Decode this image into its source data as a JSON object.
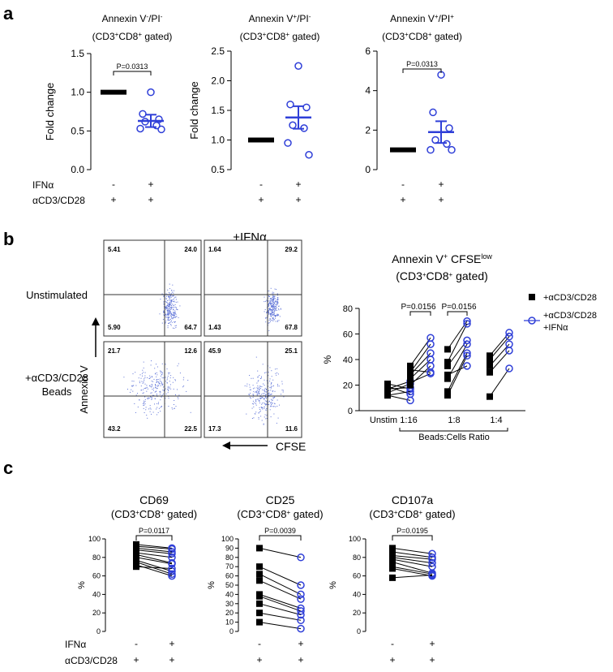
{
  "panel_labels": {
    "a": "a",
    "b": "b",
    "c": "c"
  },
  "colors": {
    "stim_ifn": "#2f3fd8",
    "control": "#000000",
    "dots": "#5f74d8"
  },
  "row_labels_a": {
    "ifn": "IFNα",
    "cd3": "αCD3/CD28"
  },
  "row_labels_c": {
    "ifn": "IFNα",
    "cd3": "αCD3/CD28"
  },
  "flow": {
    "title_ifn": "+IFNα",
    "row1_label": "Unstimulated",
    "row2_label_1": "+αCD3/CD28",
    "row2_label_2": "Beads",
    "y_axis_label": "Annexin V",
    "x_axis_label": "CFSE",
    "plots": [
      {
        "q": [
          "5.41",
          "24.0",
          "5.90",
          "64.7"
        ]
      },
      {
        "q": [
          "1.64",
          "29.2",
          "1.43",
          "67.8"
        ]
      },
      {
        "q": [
          "21.7",
          "12.6",
          "43.2",
          "22.5"
        ]
      },
      {
        "q": [
          "45.9",
          "25.1",
          "17.3",
          "11.6"
        ]
      }
    ]
  },
  "chart_data": [
    {
      "type": "scatter",
      "panel": "a1",
      "title_main": "Annexin V",
      "title_sup1": "-",
      "title_mid": "/PI",
      "title_sup2": "-",
      "subtitle": "(CD3+CD8+ gated)",
      "ylabel": "Fold change",
      "ylim": [
        0,
        1.5
      ],
      "yticks": [
        "0.0",
        "0.5",
        "1.0",
        "1.5"
      ],
      "pvalue": "P=0.0313",
      "ifn_row": [
        "-",
        "+"
      ],
      "cd3_row": [
        "+",
        "+"
      ],
      "control_value": 1.0,
      "points": [
        1.0,
        0.72,
        0.65,
        0.62,
        0.57,
        0.53,
        0.52
      ],
      "mean": 0.63,
      "sem": [
        0.55,
        0.71
      ]
    },
    {
      "type": "scatter",
      "panel": "a2",
      "title_main": "Annexin V",
      "title_sup1": "+",
      "title_mid": "/PI",
      "title_sup2": "-",
      "subtitle": "(CD3+CD8+ gated)",
      "ylabel": "Fold change",
      "ylim": [
        0.5,
        2.5
      ],
      "yticks": [
        "0.5",
        "1.0",
        "1.5",
        "2.0",
        "2.5"
      ],
      "pvalue": "",
      "ifn_row": [
        "-",
        "+"
      ],
      "cd3_row": [
        "+",
        "+"
      ],
      "control_value": 1.0,
      "points": [
        2.25,
        1.6,
        1.55,
        1.25,
        1.2,
        0.95,
        0.75
      ],
      "mean": 1.38,
      "sem": [
        1.19,
        1.57
      ]
    },
    {
      "type": "scatter",
      "panel": "a3",
      "title_main": "Annexin V",
      "title_sup1": "+",
      "title_mid": "/PI",
      "title_sup2": "+",
      "subtitle": "(CD3+CD8+ gated)",
      "ylabel": "",
      "ylim": [
        0,
        6
      ],
      "yticks": [
        "0",
        "2",
        "4",
        "6"
      ],
      "pvalue": "P=0.0313",
      "ifn_row": [
        "-",
        "+"
      ],
      "cd3_row": [
        "+",
        "+"
      ],
      "control_value": 1.0,
      "points": [
        4.8,
        2.9,
        2.1,
        1.5,
        1.3,
        1.0,
        1.0
      ],
      "mean": 1.9,
      "sem": [
        1.35,
        2.45
      ]
    },
    {
      "type": "line",
      "panel": "b",
      "title_main": "Annexin V",
      "title_sup_main": "+",
      "title_rest": " CFSE",
      "title_sup_rest": "low",
      "subtitle": "(CD3+CD8+ gated)",
      "ylabel": "%",
      "ylim": [
        0,
        80
      ],
      "yticks": [
        "0",
        "20",
        "40",
        "60",
        "80"
      ],
      "categories": [
        "Unstim",
        "1:16",
        "1:8",
        "1:4"
      ],
      "xlabel": "Beads:Cells Ratio",
      "pvalues": [
        "P=0.0156",
        "P=0.0156"
      ],
      "legend": [
        "+αCD3/CD28",
        "+αCD3/CD28",
        "+IFNα"
      ],
      "pairs": [
        [
          [
            21,
            17
          ],
          [
            19,
            13
          ],
          [
            17,
            23
          ],
          [
            14,
            21
          ],
          [
            12,
            8
          ],
          [
            12,
            15
          ],
          [
            17,
            18
          ]
        ],
        [
          [
            35,
            57
          ],
          [
            30,
            52
          ],
          [
            28,
            45
          ],
          [
            25,
            40
          ],
          [
            20,
            35
          ],
          [
            32,
            30
          ],
          [
            22,
            29
          ]
        ],
        [
          [
            48,
            70
          ],
          [
            38,
            68
          ],
          [
            35,
            55
          ],
          [
            25,
            52
          ],
          [
            15,
            45
          ],
          [
            28,
            35
          ],
          [
            12,
            43
          ]
        ],
        [
          [
            43,
            61
          ],
          [
            40,
            58
          ],
          [
            35,
            52
          ],
          [
            30,
            47
          ],
          [
            11,
            33
          ]
        ]
      ]
    },
    {
      "type": "line",
      "panel": "c1",
      "title": "CD69",
      "subtitle": "(CD3+CD8+ gated)",
      "ylabel": "%",
      "ylim": [
        0,
        100
      ],
      "yticks": [
        "0",
        "20",
        "40",
        "60",
        "80",
        "100"
      ],
      "pvalue": "P=0.0117",
      "ifn_row": [
        "-",
        "+"
      ],
      "cd3_row": [
        "+",
        "+"
      ],
      "pairs": [
        [
          94,
          90
        ],
        [
          92,
          89
        ],
        [
          90,
          86
        ],
        [
          88,
          84
        ],
        [
          85,
          80
        ],
        [
          83,
          74
        ],
        [
          80,
          73
        ],
        [
          77,
          65
        ],
        [
          75,
          62
        ],
        [
          72,
          60
        ],
        [
          70,
          68
        ]
      ]
    },
    {
      "type": "line",
      "panel": "c2",
      "title": "CD25",
      "subtitle": "(CD3+CD8+ gated)",
      "ylabel": "%",
      "ylim": [
        0,
        100
      ],
      "yticks": [
        "0",
        "10",
        "20",
        "30",
        "40",
        "50",
        "60",
        "70",
        "80",
        "90",
        "100"
      ],
      "pvalue": "P=0.0039",
      "ifn_row": [
        "-",
        "+"
      ],
      "cd3_row": [
        "+",
        "+"
      ],
      "pairs": [
        [
          90,
          80
        ],
        [
          70,
          50
        ],
        [
          62,
          40
        ],
        [
          55,
          35
        ],
        [
          40,
          25
        ],
        [
          38,
          22
        ],
        [
          30,
          18
        ],
        [
          20,
          12
        ],
        [
          10,
          3
        ]
      ]
    },
    {
      "type": "line",
      "panel": "c3",
      "title": "CD107a",
      "subtitle": "(CD3+CD8+ gated)",
      "ylabel": "%",
      "ylim": [
        0,
        100
      ],
      "yticks": [
        "0",
        "20",
        "40",
        "60",
        "80",
        "100"
      ],
      "pvalue": "P=0.0195",
      "ifn_row": [
        "-",
        "+"
      ],
      "cd3_row": [
        "+",
        "+"
      ],
      "pairs": [
        [
          90,
          84
        ],
        [
          86,
          80
        ],
        [
          82,
          78
        ],
        [
          80,
          74
        ],
        [
          78,
          70
        ],
        [
          75,
          63
        ],
        [
          70,
          62
        ],
        [
          68,
          60
        ],
        [
          58,
          61
        ]
      ]
    }
  ]
}
